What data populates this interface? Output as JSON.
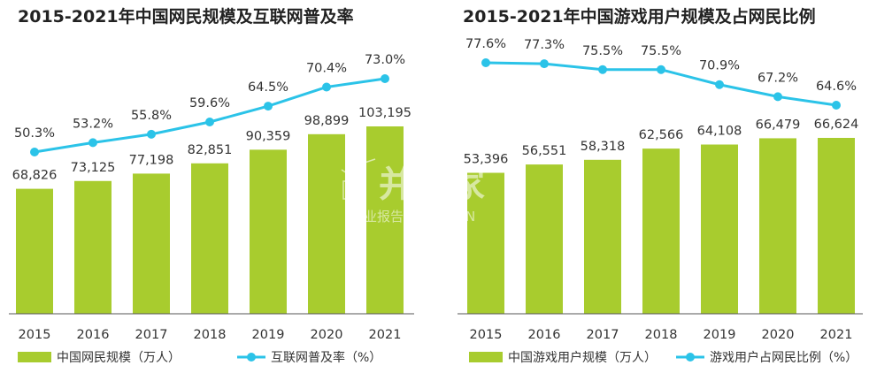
{
  "colors": {
    "bar": "#a8cc2e",
    "line": "#2bc3e8",
    "axis": "#555555"
  },
  "watermark": {
    "brand": "并购家",
    "sub": "行业报告 IPOIPO.CN",
    "icon": "bar-chart-logo-icon"
  },
  "chart_data": [
    {
      "type": "bar+line",
      "title": "2015-2021年中国网民规模及互联网普及率",
      "categories": [
        "2015",
        "2016",
        "2017",
        "2018",
        "2019",
        "2020",
        "2021"
      ],
      "series": [
        {
          "name": "中国网民规模（万人）",
          "type": "bar",
          "values": [
            68826,
            73125,
            77198,
            82851,
            90359,
            98899,
            103195
          ],
          "labels": [
            "68,826",
            "73,125",
            "77,198",
            "82,851",
            "90,359",
            "98,899",
            "103,195"
          ]
        },
        {
          "name": "互联网普及率（%）",
          "type": "line",
          "values": [
            50.3,
            53.2,
            55.8,
            59.6,
            64.5,
            70.4,
            73.0
          ],
          "labels": [
            "50.3%",
            "53.2%",
            "55.8%",
            "59.6%",
            "64.5%",
            "70.4%",
            "73.0%"
          ]
        }
      ],
      "legend": "bottom"
    },
    {
      "type": "bar+line",
      "title": "2015-2021年中国游戏用户规模及占网民比例",
      "categories": [
        "2015",
        "2016",
        "2017",
        "2018",
        "2019",
        "2020",
        "2021"
      ],
      "series": [
        {
          "name": "中国游戏用户规模（万人）",
          "type": "bar",
          "values": [
            53396,
            56551,
            58318,
            62566,
            64108,
            66479,
            66624
          ],
          "labels": [
            "53,396",
            "56,551",
            "58,318",
            "62,566",
            "64,108",
            "66,479",
            "66,624"
          ]
        },
        {
          "name": "游戏用户占网民比例（%）",
          "type": "line",
          "values": [
            77.6,
            77.3,
            75.5,
            75.5,
            70.9,
            67.2,
            64.6
          ],
          "labels": [
            "77.6%",
            "77.3%",
            "75.5%",
            "75.5%",
            "70.9%",
            "67.2%",
            "64.6%"
          ]
        }
      ],
      "legend": "bottom"
    }
  ]
}
